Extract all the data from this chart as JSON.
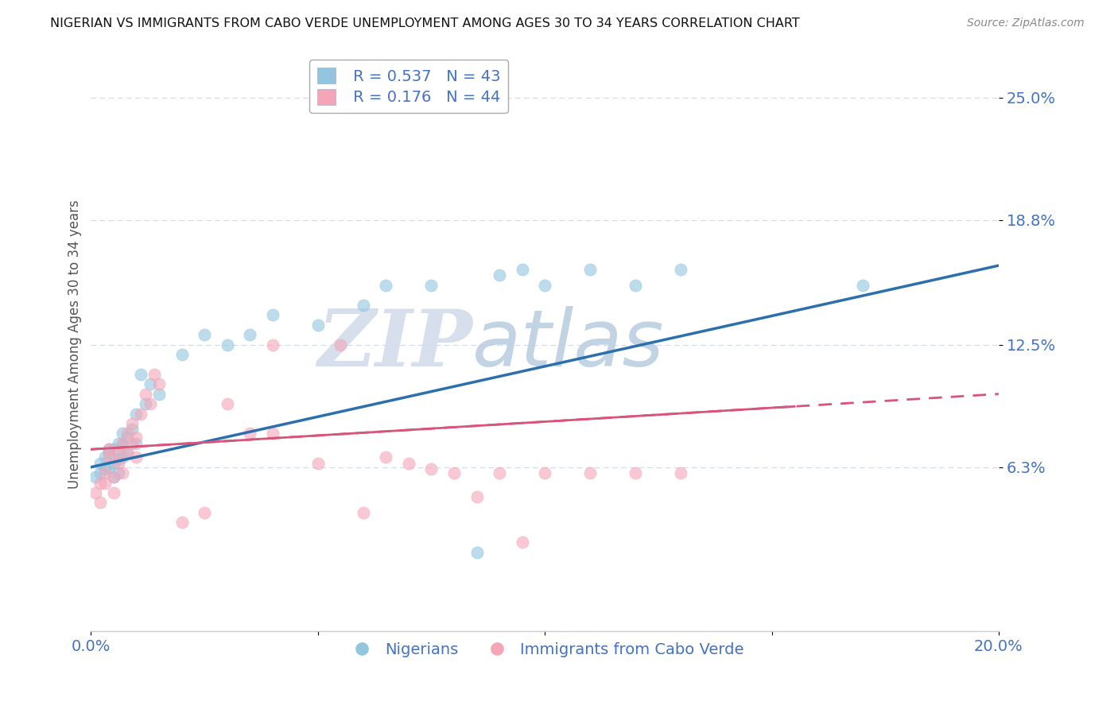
{
  "title": "NIGERIAN VS IMMIGRANTS FROM CABO VERDE UNEMPLOYMENT AMONG AGES 30 TO 34 YEARS CORRELATION CHART",
  "source": "Source: ZipAtlas.com",
  "ylabel": "Unemployment Among Ages 30 to 34 years",
  "ytick_labels": [
    "6.3%",
    "12.5%",
    "18.8%",
    "25.0%"
  ],
  "ytick_values": [
    0.063,
    0.125,
    0.188,
    0.25
  ],
  "xlim": [
    0.0,
    0.2
  ],
  "ylim": [
    -0.02,
    0.27
  ],
  "blue_R": 0.537,
  "blue_N": 43,
  "pink_R": 0.176,
  "pink_N": 44,
  "blue_color": "#92c5de",
  "pink_color": "#f4a6b8",
  "trend_blue": "#2c6fad",
  "trend_pink": "#d9547a",
  "watermark_zip": "ZIP",
  "watermark_atlas": "atlas",
  "watermark_color_zip": "#c8d4e8",
  "watermark_color_atlas": "#b8c8dc",
  "legend_label_blue": "Nigerians",
  "legend_label_pink": "Immigrants from Cabo Verde",
  "blue_scatter_x": [
    0.001,
    0.002,
    0.002,
    0.003,
    0.003,
    0.004,
    0.004,
    0.004,
    0.005,
    0.005,
    0.005,
    0.006,
    0.006,
    0.006,
    0.007,
    0.007,
    0.007,
    0.008,
    0.008,
    0.009,
    0.01,
    0.01,
    0.011,
    0.012,
    0.013,
    0.015,
    0.02,
    0.025,
    0.03,
    0.035,
    0.04,
    0.05,
    0.06,
    0.065,
    0.075,
    0.09,
    0.095,
    0.1,
    0.11,
    0.12,
    0.13,
    0.17,
    0.085
  ],
  "blue_scatter_y": [
    0.058,
    0.06,
    0.065,
    0.062,
    0.068,
    0.063,
    0.07,
    0.072,
    0.058,
    0.065,
    0.072,
    0.06,
    0.067,
    0.075,
    0.068,
    0.074,
    0.08,
    0.07,
    0.078,
    0.082,
    0.075,
    0.09,
    0.11,
    0.095,
    0.105,
    0.1,
    0.12,
    0.13,
    0.125,
    0.13,
    0.14,
    0.135,
    0.145,
    0.155,
    0.155,
    0.16,
    0.163,
    0.155,
    0.163,
    0.155,
    0.163,
    0.155,
    0.02
  ],
  "pink_scatter_x": [
    0.001,
    0.002,
    0.002,
    0.003,
    0.003,
    0.004,
    0.004,
    0.005,
    0.005,
    0.006,
    0.006,
    0.007,
    0.007,
    0.008,
    0.008,
    0.009,
    0.009,
    0.01,
    0.01,
    0.011,
    0.012,
    0.013,
    0.014,
    0.015,
    0.02,
    0.025,
    0.03,
    0.035,
    0.04,
    0.05,
    0.06,
    0.07,
    0.08,
    0.09,
    0.1,
    0.11,
    0.12,
    0.13,
    0.04,
    0.055,
    0.065,
    0.075,
    0.085,
    0.095
  ],
  "pink_scatter_y": [
    0.05,
    0.055,
    0.045,
    0.06,
    0.055,
    0.068,
    0.072,
    0.058,
    0.05,
    0.065,
    0.07,
    0.075,
    0.06,
    0.08,
    0.07,
    0.075,
    0.085,
    0.078,
    0.068,
    0.09,
    0.1,
    0.095,
    0.11,
    0.105,
    0.035,
    0.04,
    0.095,
    0.08,
    0.08,
    0.065,
    0.04,
    0.065,
    0.06,
    0.06,
    0.06,
    0.06,
    0.06,
    0.06,
    0.125,
    0.125,
    0.068,
    0.062,
    0.048,
    0.025
  ],
  "blue_trend_start_y": 0.063,
  "blue_trend_end_y": 0.165,
  "pink_trend_start_y": 0.072,
  "pink_trend_end_y": 0.1
}
